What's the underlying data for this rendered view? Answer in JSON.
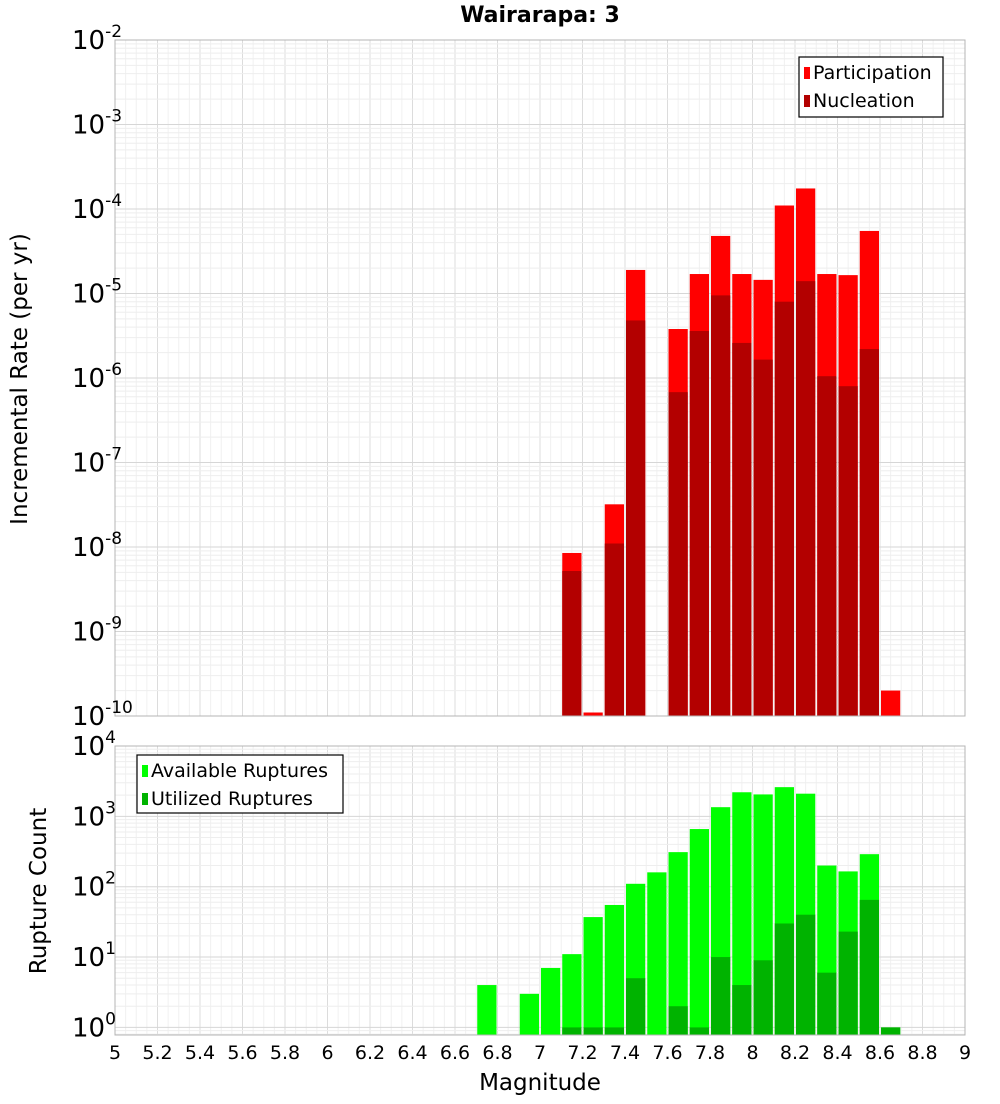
{
  "chart_data": [
    {
      "type": "bar",
      "title": "Wairarapa: 3",
      "xlabel": "Magnitude",
      "ylabel": "Incremental Rate (per yr)",
      "yscale": "log",
      "ylim": [
        1e-10,
        0.01
      ],
      "y_ticks": [
        {
          "base": "10",
          "exp": "-2",
          "value": 0.01
        },
        {
          "base": "10",
          "exp": "-3",
          "value": 0.001
        },
        {
          "base": "10",
          "exp": "-4",
          "value": 0.0001
        },
        {
          "base": "10",
          "exp": "-5",
          "value": 1e-05
        },
        {
          "base": "10",
          "exp": "-6",
          "value": 1e-06
        },
        {
          "base": "10",
          "exp": "-7",
          "value": 1e-07
        },
        {
          "base": "10",
          "exp": "-8",
          "value": 1e-08
        },
        {
          "base": "10",
          "exp": "-9",
          "value": 1e-09
        },
        {
          "base": "10",
          "exp": "-10",
          "value": 1e-10
        }
      ],
      "grid": true,
      "legend_position": "top-right",
      "series": [
        {
          "name": "Participation",
          "color": "#ff0000",
          "points": [
            {
              "x": 7.1,
              "y": 8.5e-09
            },
            {
              "x": 7.2,
              "y": 1.1e-10
            },
            {
              "x": 7.3,
              "y": 3.2e-08
            },
            {
              "x": 7.4,
              "y": 1.9e-05
            },
            {
              "x": 7.6,
              "y": 3.8e-06
            },
            {
              "x": 7.7,
              "y": 1.7e-05
            },
            {
              "x": 7.8,
              "y": 4.8e-05
            },
            {
              "x": 7.9,
              "y": 1.7e-05
            },
            {
              "x": 8.0,
              "y": 1.45e-05
            },
            {
              "x": 8.1,
              "y": 0.00011
            },
            {
              "x": 8.2,
              "y": 0.000175
            },
            {
              "x": 8.3,
              "y": 1.7e-05
            },
            {
              "x": 8.4,
              "y": 1.65e-05
            },
            {
              "x": 8.5,
              "y": 5.5e-05
            },
            {
              "x": 8.6,
              "y": 2e-10
            }
          ]
        },
        {
          "name": "Nucleation",
          "color": "#b30000",
          "points": [
            {
              "x": 7.1,
              "y": 5.2e-09
            },
            {
              "x": 7.4,
              "y": 4.8e-06
            },
            {
              "x": 7.6,
              "y": 6.8e-07
            },
            {
              "x": 7.7,
              "y": 3.6e-06
            },
            {
              "x": 7.8,
              "y": 9.5e-06
            },
            {
              "x": 7.9,
              "y": 2.6e-06
            },
            {
              "x": 8.0,
              "y": 1.65e-06
            },
            {
              "x": 8.1,
              "y": 8e-06
            },
            {
              "x": 8.2,
              "y": 1.4e-05
            },
            {
              "x": 8.3,
              "y": 1.05e-06
            },
            {
              "x": 8.4,
              "y": 8e-07
            },
            {
              "x": 8.5,
              "y": 2.2e-06
            },
            {
              "x": 7.3,
              "y": 1.1e-08
            }
          ]
        }
      ]
    },
    {
      "type": "bar",
      "xlabel": "Magnitude",
      "ylabel": "Rupture Count",
      "yscale": "log",
      "ylim": [
        0.78,
        10000
      ],
      "y_ticks": [
        {
          "base": "10",
          "exp": "4",
          "value": 10000
        },
        {
          "base": "10",
          "exp": "3",
          "value": 1000
        },
        {
          "base": "10",
          "exp": "2",
          "value": 100
        },
        {
          "base": "10",
          "exp": "1",
          "value": 10
        },
        {
          "base": "10",
          "exp": "0",
          "value": 1
        }
      ],
      "xlim": [
        5,
        9
      ],
      "x_ticks": [
        "5",
        "5.2",
        "5.4",
        "5.6",
        "5.8",
        "6",
        "6.2",
        "6.4",
        "6.6",
        "6.8",
        "7",
        "7.2",
        "7.4",
        "7.6",
        "7.8",
        "8",
        "8.2",
        "8.4",
        "8.6",
        "8.8",
        "9"
      ],
      "grid": true,
      "legend_position": "top-left",
      "series": [
        {
          "name": "Available Ruptures",
          "color": "#00ff00",
          "points": [
            {
              "x": 6.7,
              "y": 4
            },
            {
              "x": 6.9,
              "y": 3
            },
            {
              "x": 7.0,
              "y": 7
            },
            {
              "x": 7.1,
              "y": 11
            },
            {
              "x": 7.2,
              "y": 37
            },
            {
              "x": 7.3,
              "y": 55
            },
            {
              "x": 7.4,
              "y": 110
            },
            {
              "x": 7.5,
              "y": 160
            },
            {
              "x": 7.6,
              "y": 310
            },
            {
              "x": 7.7,
              "y": 660
            },
            {
              "x": 7.8,
              "y": 1350
            },
            {
              "x": 7.9,
              "y": 2200
            },
            {
              "x": 8.0,
              "y": 2050
            },
            {
              "x": 8.1,
              "y": 2600
            },
            {
              "x": 8.2,
              "y": 2100
            },
            {
              "x": 8.3,
              "y": 200
            },
            {
              "x": 8.4,
              "y": 165
            },
            {
              "x": 8.5,
              "y": 290
            },
            {
              "x": 8.6,
              "y": 1
            }
          ]
        },
        {
          "name": "Utilized Ruptures",
          "color": "#00b300",
          "points": [
            {
              "x": 7.1,
              "y": 1
            },
            {
              "x": 7.2,
              "y": 1
            },
            {
              "x": 7.3,
              "y": 1
            },
            {
              "x": 7.4,
              "y": 5
            },
            {
              "x": 7.6,
              "y": 2
            },
            {
              "x": 7.7,
              "y": 1
            },
            {
              "x": 7.8,
              "y": 10
            },
            {
              "x": 7.9,
              "y": 4
            },
            {
              "x": 8.0,
              "y": 9
            },
            {
              "x": 8.1,
              "y": 30
            },
            {
              "x": 8.2,
              "y": 40
            },
            {
              "x": 8.3,
              "y": 6
            },
            {
              "x": 8.4,
              "y": 23
            },
            {
              "x": 8.5,
              "y": 65
            },
            {
              "x": 8.6,
              "y": 1
            }
          ]
        }
      ]
    }
  ]
}
